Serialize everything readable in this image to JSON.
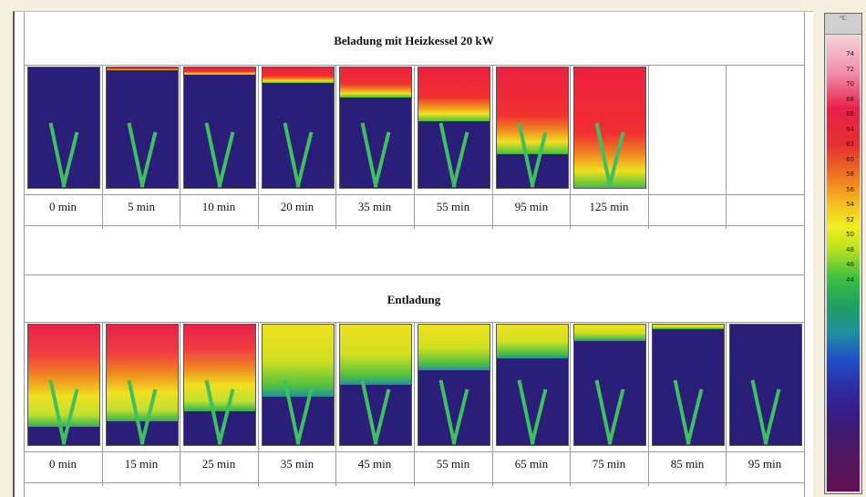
{
  "charging": {
    "title": "Beladung mit Heizkessel 20 kW",
    "times": [
      "0 min",
      "5 min",
      "10 min",
      "20 min",
      "35 min",
      "55 min",
      "95 min",
      "125 min"
    ],
    "hot_fraction": [
      0,
      0.02,
      0.06,
      0.13,
      0.25,
      0.45,
      0.72,
      1.0
    ]
  },
  "discharging": {
    "title": "Entladung",
    "times": [
      "0 min",
      "15 min",
      "25 min",
      "35 min",
      "45 min",
      "55 min",
      "65 min",
      "75 min",
      "85 min",
      "95 min"
    ],
    "hot_fraction": [
      0.85,
      0.8,
      0.72,
      0.6,
      0.5,
      0.38,
      0.28,
      0.14,
      0.04,
      0
    ]
  },
  "scale": {
    "unit": "°C",
    "ticks": [
      "74",
      "72",
      "70",
      "68",
      "66",
      "64",
      "62",
      "60",
      "58",
      "56",
      "54",
      "52",
      "50",
      "48",
      "46",
      "44"
    ]
  }
}
